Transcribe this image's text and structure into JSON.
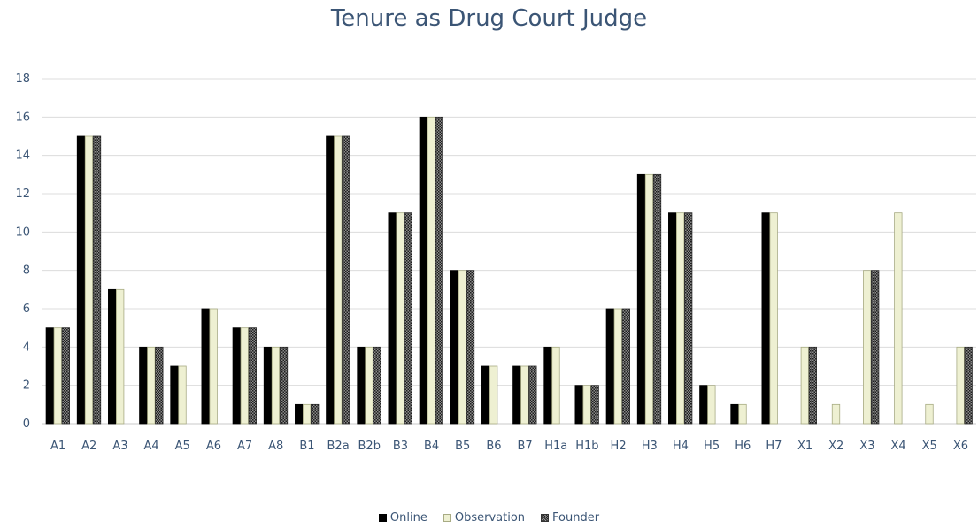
{
  "chart_data": {
    "type": "bar",
    "title": "Tenure as Drug Court Judge",
    "xlabel": "",
    "ylabel": "",
    "ylim": [
      0,
      18
    ],
    "yticks": [
      0,
      2,
      4,
      6,
      8,
      10,
      12,
      14,
      16,
      18
    ],
    "grid": true,
    "legend_position": "bottom",
    "categories": [
      "A1",
      "A2",
      "A3",
      "A4",
      "A5",
      "A6",
      "A7",
      "A8",
      "B1",
      "B2a",
      "B2b",
      "B3",
      "B4",
      "B5",
      "B6",
      "B7",
      "H1a",
      "H1b",
      "H2",
      "H3",
      "H4",
      "H5",
      "H6",
      "H7",
      "X1",
      "X2",
      "X3",
      "X4",
      "X5",
      "X6"
    ],
    "series": [
      {
        "name": "Online",
        "color": "#000000",
        "values": [
          5,
          15,
          7,
          4,
          3,
          6,
          5,
          4,
          1,
          15,
          4,
          11,
          16,
          8,
          3,
          3,
          4,
          2,
          6,
          13,
          11,
          2,
          1,
          11,
          null,
          null,
          null,
          null,
          null,
          null
        ]
      },
      {
        "name": "Observation",
        "color": "#eef0d2",
        "values": [
          5,
          15,
          7,
          4,
          3,
          6,
          5,
          4,
          1,
          15,
          4,
          11,
          16,
          8,
          3,
          3,
          4,
          2,
          6,
          13,
          11,
          2,
          1,
          11,
          4,
          1,
          8,
          11,
          1,
          4
        ]
      },
      {
        "name": "Founder",
        "color": "#555555",
        "values": [
          5,
          15,
          null,
          4,
          null,
          null,
          5,
          4,
          1,
          15,
          4,
          11,
          16,
          8,
          null,
          3,
          null,
          2,
          6,
          13,
          11,
          null,
          null,
          null,
          4,
          null,
          8,
          null,
          null,
          4
        ]
      }
    ]
  }
}
